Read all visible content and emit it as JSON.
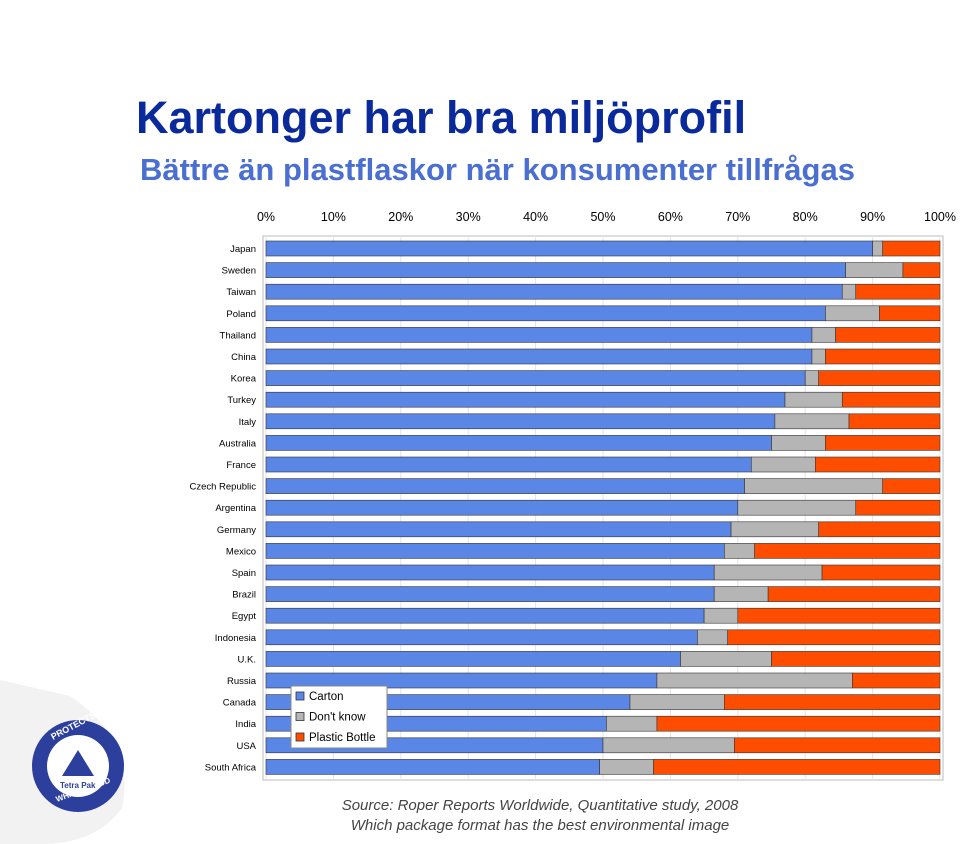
{
  "header": {
    "title": "Kartonger har bra miljöprofil",
    "subtitle": "Bättre än plastflaskor när konsumenter tillfrågas"
  },
  "footer": {
    "source_line1": "Source: Roper Reports Worldwide, Quantitative study, 2008",
    "source_line2": "Which package format has the best environmental image"
  },
  "logo": {
    "ring_top": "PROTECTS",
    "ring_bottom": "WHAT'S GOOD",
    "brand": "Tetra Pak"
  },
  "chart_data": {
    "type": "bar",
    "orientation": "horizontal",
    "stacked": "percent",
    "categories": [
      "Japan",
      "Sweden",
      "Taiwan",
      "Poland",
      "Thailand",
      "China",
      "Korea",
      "Turkey",
      "Italy",
      "Australia",
      "France",
      "Czech Republic",
      "Argentina",
      "Germany",
      "Mexico",
      "Spain",
      "Brazil",
      "Egypt",
      "Indonesia",
      "U.K.",
      "Russia",
      "Canada",
      "India",
      "USA",
      "South Africa"
    ],
    "series": [
      {
        "name": "Carton",
        "color": "#5a86e6",
        "values": [
          90,
          86,
          85.5,
          83,
          81,
          81,
          80,
          77,
          75.5,
          75,
          72,
          71,
          70,
          69,
          68,
          66.5,
          66.5,
          65,
          64,
          61.5,
          58,
          54,
          50.5,
          50,
          49.5
        ]
      },
      {
        "name": "Don't know",
        "color": "#b5b5b5",
        "values": [
          1.5,
          8.5,
          2,
          8,
          3.5,
          2,
          2,
          8.5,
          11,
          8,
          9.5,
          20.5,
          17.5,
          13,
          4.5,
          16,
          8,
          5,
          4.5,
          13.5,
          29,
          14,
          7.5,
          19.5,
          8
        ]
      },
      {
        "name": "Plastic Bottle",
        "color": "#ff4d00",
        "values": [
          8.5,
          5.5,
          12.5,
          9,
          15.5,
          17,
          18,
          14.5,
          13.5,
          17,
          18.5,
          8.5,
          12.5,
          18,
          27.5,
          17.5,
          25.5,
          30,
          31.5,
          25,
          13,
          32,
          42,
          30.5,
          42.5
        ]
      }
    ],
    "x_ticks": [
      "0%",
      "10%",
      "20%",
      "30%",
      "40%",
      "50%",
      "60%",
      "70%",
      "80%",
      "90%",
      "100%"
    ],
    "xlim": [
      0,
      100
    ],
    "axis_position": "top",
    "grid": true,
    "legend_position": "bottom-left"
  }
}
